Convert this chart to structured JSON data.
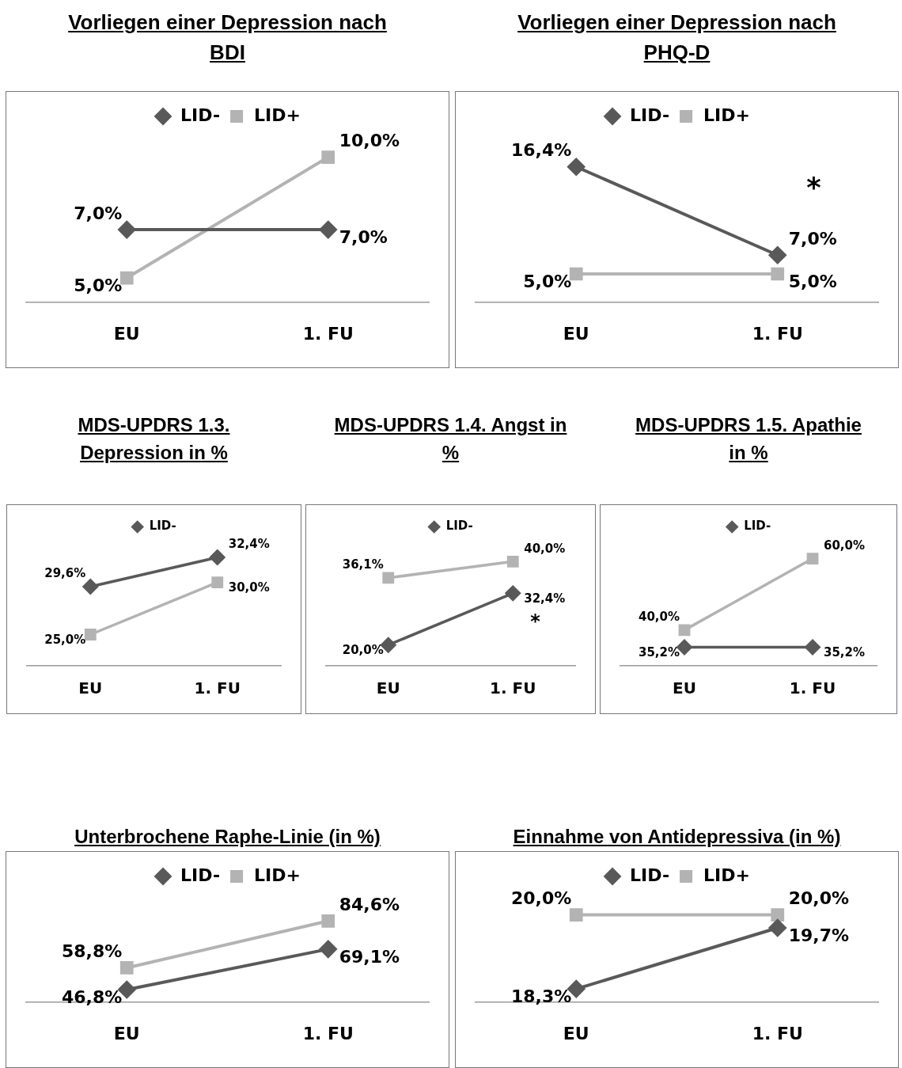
{
  "chart_data": [
    {
      "type": "line",
      "title": "Vorliegen einer Depression nach BDI",
      "categories": [
        "EU",
        "1. FU"
      ],
      "legend": "top",
      "series": [
        {
          "name": "LID-",
          "color": "#595959",
          "marker": "diamond",
          "values": [
            7.0,
            7.0
          ],
          "value_labels": [
            "7,0%",
            "7,0%"
          ]
        },
        {
          "name": "LID+",
          "color": "#b3b3b3",
          "marker": "square",
          "values": [
            5.0,
            10.0
          ],
          "value_labels": [
            "5,0%",
            "10,0%"
          ]
        }
      ]
    },
    {
      "type": "line",
      "title": "Vorliegen einer Depression nach PHQ-D",
      "categories": [
        "EU",
        "1. FU"
      ],
      "legend": "top",
      "annotations": [
        "*"
      ],
      "series": [
        {
          "name": "LID-",
          "color": "#595959",
          "marker": "diamond",
          "values": [
            16.4,
            7.0
          ],
          "value_labels": [
            "16,4%",
            "7,0%"
          ]
        },
        {
          "name": "LID+",
          "color": "#b3b3b3",
          "marker": "square",
          "values": [
            5.0,
            5.0
          ],
          "value_labels": [
            "5,0%",
            "5,0%"
          ]
        }
      ]
    },
    {
      "type": "line",
      "title": "MDS-UPDRS 1.3. Depression in %",
      "categories": [
        "EU",
        "1. FU"
      ],
      "legend": "top",
      "series": [
        {
          "name": "LID-",
          "color": "#595959",
          "marker": "diamond",
          "values": [
            29.6,
            32.4
          ],
          "value_labels": [
            "29,6%",
            "32,4%"
          ]
        },
        {
          "color": "#b3b3b3",
          "marker": "square",
          "values": [
            25.0,
            30.0
          ],
          "value_labels": [
            "25,0%",
            "30,0%"
          ]
        }
      ]
    },
    {
      "type": "line",
      "title": "MDS-UPDRS 1.4. Angst in %",
      "categories": [
        "EU",
        "1. FU"
      ],
      "legend": "top",
      "annotations": [
        "*"
      ],
      "series": [
        {
          "name": "LID-",
          "color": "#595959",
          "marker": "diamond",
          "values": [
            20.0,
            32.4
          ],
          "value_labels": [
            "20,0%",
            "32,4%"
          ]
        },
        {
          "color": "#b3b3b3",
          "marker": "square",
          "values": [
            36.1,
            40.0
          ],
          "value_labels": [
            "36,1%",
            "40,0%"
          ]
        }
      ]
    },
    {
      "type": "line",
      "title": "MDS-UPDRS 1.5. Apathie in %",
      "categories": [
        "EU",
        "1. FU"
      ],
      "legend": "top",
      "series": [
        {
          "name": "LID-",
          "color": "#595959",
          "marker": "diamond",
          "values": [
            35.2,
            35.2
          ],
          "value_labels": [
            "35,2%",
            "35,2%"
          ]
        },
        {
          "color": "#b3b3b3",
          "marker": "square",
          "values": [
            40.0,
            60.0
          ],
          "value_labels": [
            "40,0%",
            "60,0%"
          ]
        }
      ]
    },
    {
      "type": "line",
      "title": "Unterbrochene Raphe-Linie (in %)",
      "categories": [
        "EU",
        "1. FU"
      ],
      "legend": "top",
      "series": [
        {
          "name": "LID-",
          "color": "#595959",
          "marker": "diamond",
          "values": [
            46.8,
            69.1
          ],
          "value_labels": [
            "46,8%",
            "69,1%"
          ]
        },
        {
          "name": "LID+",
          "color": "#b3b3b3",
          "marker": "square",
          "values": [
            58.8,
            84.6
          ],
          "value_labels": [
            "58,8%",
            "84,6%"
          ]
        }
      ]
    },
    {
      "type": "line",
      "title": "Einnahme von Antidepressiva (in %)",
      "categories": [
        "EU",
        "1. FU"
      ],
      "legend": "top",
      "series": [
        {
          "name": "LID-",
          "color": "#595959",
          "marker": "diamond",
          "values": [
            18.3,
            19.7
          ],
          "value_labels": [
            "18,3%",
            "19,7%"
          ]
        },
        {
          "name": "LID+",
          "color": "#b3b3b3",
          "marker": "square",
          "values": [
            20.0,
            20.0
          ],
          "value_labels": [
            "20,0%",
            "20,0%"
          ]
        }
      ]
    }
  ]
}
